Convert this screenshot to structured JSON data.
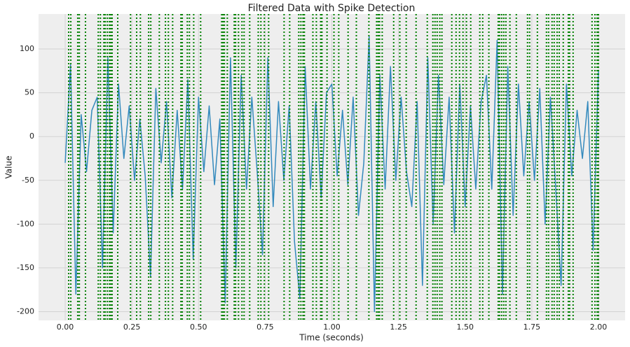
{
  "chart_data": {
    "type": "line",
    "title": "Filtered Data with Spike Detection",
    "xlabel": "Time (seconds)",
    "ylabel": "Value",
    "x": [
      0,
      0.02,
      0.04,
      0.06,
      0.08,
      0.1,
      0.12,
      0.14,
      0.16,
      0.18,
      0.2,
      0.22,
      0.24,
      0.26,
      0.28,
      0.3,
      0.32,
      0.34,
      0.36,
      0.38,
      0.4,
      0.42,
      0.44,
      0.46,
      0.48,
      0.5,
      0.52,
      0.54,
      0.56,
      0.58,
      0.6,
      0.62,
      0.64,
      0.66,
      0.68,
      0.7,
      0.72,
      0.74,
      0.76,
      0.78,
      0.8,
      0.82,
      0.84,
      0.86,
      0.88,
      0.9,
      0.92,
      0.94,
      0.96,
      0.98,
      1.0,
      1.02,
      1.04,
      1.06,
      1.08,
      1.1,
      1.12,
      1.14,
      1.16,
      1.18,
      1.2,
      1.22,
      1.24,
      1.26,
      1.28,
      1.3,
      1.32,
      1.34,
      1.36,
      1.38,
      1.4,
      1.42,
      1.44,
      1.46,
      1.48,
      1.5,
      1.52,
      1.54,
      1.56,
      1.58,
      1.6,
      1.62,
      1.64,
      1.66,
      1.68,
      1.7,
      1.72,
      1.74,
      1.76,
      1.78,
      1.8,
      1.82,
      1.84,
      1.86,
      1.88,
      1.9,
      1.92,
      1.94,
      1.96,
      1.98,
      2.0
    ],
    "values": [
      -30,
      82,
      -180,
      25,
      -40,
      30,
      45,
      -150,
      90,
      -110,
      60,
      -25,
      35,
      -50,
      20,
      -45,
      -160,
      55,
      -30,
      40,
      -70,
      30,
      -60,
      65,
      -140,
      45,
      -40,
      35,
      -55,
      20,
      -190,
      90,
      -150,
      70,
      -60,
      45,
      -40,
      -135,
      90,
      -80,
      40,
      -50,
      35,
      -120,
      -185,
      80,
      -60,
      40,
      -70,
      50,
      60,
      -45,
      30,
      -55,
      45,
      -90,
      -30,
      115,
      -200,
      70,
      -60,
      80,
      -50,
      45,
      -40,
      -80,
      40,
      -170,
      90,
      -100,
      70,
      -55,
      45,
      -110,
      60,
      -80,
      35,
      -60,
      40,
      70,
      -60,
      110,
      -180,
      80,
      -90,
      60,
      -45,
      40,
      -50,
      55,
      -100,
      45,
      -60,
      -170,
      60,
      -45,
      30,
      -25,
      40,
      -130,
      75
    ],
    "color": "#348abd",
    "spike_times": [
      0.013,
      0.021,
      0.047,
      0.053,
      0.076,
      0.124,
      0.132,
      0.145,
      0.15,
      0.158,
      0.166,
      0.171,
      0.176,
      0.197,
      0.245,
      0.268,
      0.282,
      0.313,
      0.321,
      0.353,
      0.376,
      0.387,
      0.403,
      0.434,
      0.439,
      0.458,
      0.466,
      0.482,
      0.508,
      0.587,
      0.592,
      0.597,
      0.608,
      0.634,
      0.639,
      0.65,
      0.663,
      0.671,
      0.692,
      0.724,
      0.734,
      0.747,
      0.763,
      0.821,
      0.842,
      0.876,
      0.884,
      0.892,
      0.897,
      0.929,
      0.942,
      0.958,
      0.963,
      0.982,
      1.008,
      1.026,
      1.061,
      1.092,
      1.139,
      1.168,
      1.174,
      1.179,
      1.189,
      1.232,
      1.255,
      1.279,
      1.316,
      1.358,
      1.379,
      1.387,
      1.395,
      1.405,
      1.413,
      1.45,
      1.466,
      1.479,
      1.492,
      1.505,
      1.521,
      1.555,
      1.566,
      1.589,
      1.624,
      1.629,
      1.637,
      1.645,
      1.653,
      1.668,
      1.692,
      1.734,
      1.742,
      1.771,
      1.805,
      1.813,
      1.826,
      1.834,
      1.845,
      1.853,
      1.868,
      1.887,
      1.892,
      1.905,
      1.976,
      1.987,
      1.995,
      2.0
    ],
    "spike_color": "#008000",
    "xlim": [
      -0.1,
      2.1
    ],
    "ylim": [
      -210,
      140
    ],
    "xticks": [
      {
        "value": 0,
        "label": "0.00"
      },
      {
        "value": 0.25,
        "label": "0.25"
      },
      {
        "value": 0.5,
        "label": "0.50"
      },
      {
        "value": 0.75,
        "label": "0.75"
      },
      {
        "value": 1,
        "label": "1.00"
      },
      {
        "value": 1.25,
        "label": "1.25"
      },
      {
        "value": 1.5,
        "label": "1.50"
      },
      {
        "value": 1.75,
        "label": "1.75"
      },
      {
        "value": 2,
        "label": "2.00"
      }
    ],
    "yticks": [
      -200,
      -150,
      -100,
      -50,
      0,
      50,
      100
    ],
    "grid": true
  }
}
